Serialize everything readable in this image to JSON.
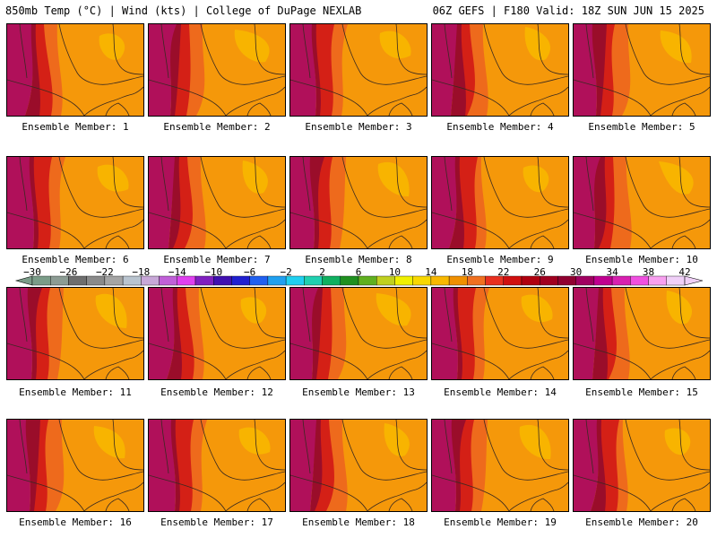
{
  "header": {
    "title_left": "850mb Temp (°C) | Wind (kts) | College of DuPage NEXLAB",
    "title_right": "06Z GEFS | F180 Valid: 18Z SUN JUN 15 2025"
  },
  "panels": [
    {
      "label": "Ensemble Member: 1"
    },
    {
      "label": "Ensemble Member: 2"
    },
    {
      "label": "Ensemble Member: 3"
    },
    {
      "label": "Ensemble Member: 4"
    },
    {
      "label": "Ensemble Member: 5"
    },
    {
      "label": "Ensemble Member: 6"
    },
    {
      "label": "Ensemble Member: 7"
    },
    {
      "label": "Ensemble Member: 8"
    },
    {
      "label": "Ensemble Member: 9"
    },
    {
      "label": "Ensemble Member: 10"
    },
    {
      "label": "Ensemble Member: 11"
    },
    {
      "label": "Ensemble Member: 12"
    },
    {
      "label": "Ensemble Member: 13"
    },
    {
      "label": "Ensemble Member: 14"
    },
    {
      "label": "Ensemble Member: 15"
    },
    {
      "label": "Ensemble Member: 16"
    },
    {
      "label": "Ensemble Member: 17"
    },
    {
      "label": "Ensemble Member: 18"
    },
    {
      "label": "Ensemble Member: 19"
    },
    {
      "label": "Ensemble Member: 20"
    }
  ],
  "colorbar": {
    "ticks": [
      "−30",
      "−26",
      "−22",
      "−18",
      "−14",
      "−10",
      "−6",
      "−2",
      "2",
      "6",
      "10",
      "14",
      "18",
      "22",
      "26",
      "30",
      "34",
      "38",
      "42"
    ],
    "colors": [
      "#7a9c88",
      "#8c9c94",
      "#6e6e6e",
      "#8a8a8a",
      "#a5a5a5",
      "#b9c4cf",
      "#c8a8d8",
      "#c060d8",
      "#e040f0",
      "#8020c0",
      "#4010b0",
      "#2020d0",
      "#2060f0",
      "#20a0f0",
      "#20d0f0",
      "#20d0b0",
      "#10b060",
      "#209020",
      "#60b020",
      "#c0d020",
      "#f0f000",
      "#f8d800",
      "#f8b800",
      "#f09000",
      "#f07020",
      "#e83020",
      "#d01010",
      "#b00010",
      "#a00020",
      "#900030",
      "#a00060",
      "#c00090",
      "#d820b0",
      "#f050e0",
      "#f8a0f0",
      "#f0d0f8"
    ]
  }
}
